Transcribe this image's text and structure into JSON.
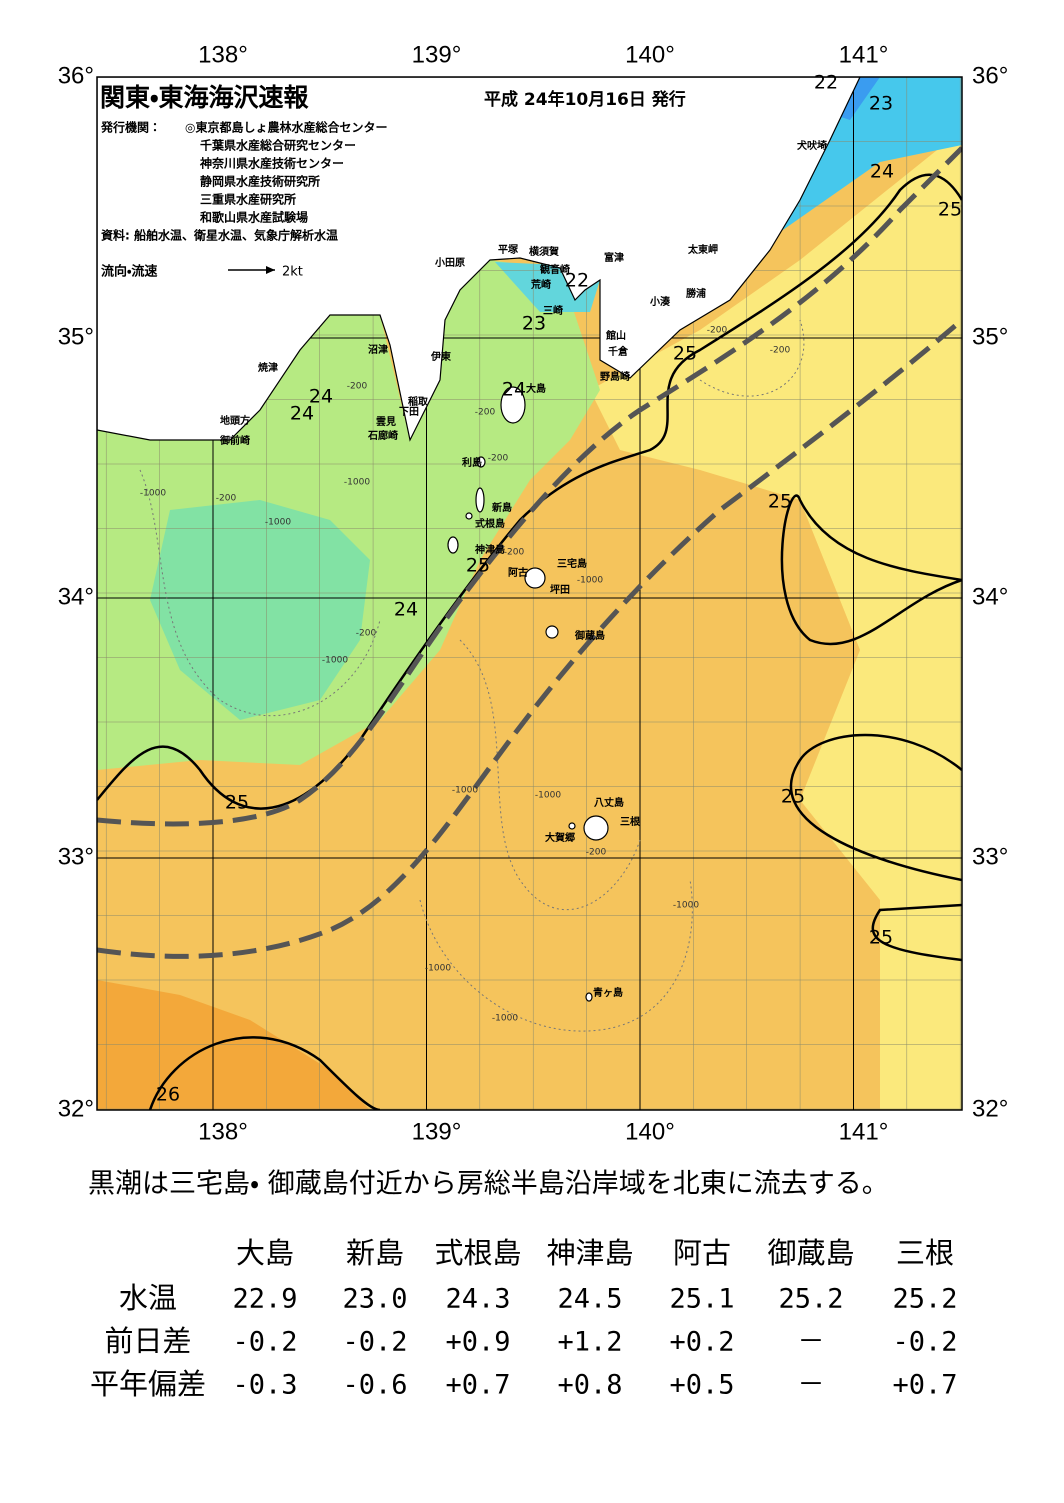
{
  "map": {
    "title": "関東・東海海沢速報",
    "date": "平成 24年10月16日 発行",
    "publisher_label": "発行機関：",
    "publishers": [
      "◎東京都島しょ農林水産総合センター",
      "千葉県水産総合研究センター",
      "神奈川県水産技術センター",
      "静岡県水産技術研究所",
      "三重県水産研究所",
      "和歌山県水産試験場"
    ],
    "source": "資料: 船舶水温、衛星水温、気象庁解析水温",
    "legend": {
      "label": "流向・流速",
      "scale": "2kt"
    },
    "lon_labels": [
      "138°",
      "139°",
      "140°",
      "141°"
    ],
    "lat_labels": [
      "36°",
      "35°",
      "34°",
      "33°",
      "32°"
    ],
    "places": [
      "犬吠埼",
      "太東岬",
      "勝浦",
      "小湊",
      "富津",
      "館山",
      "千倉",
      "野島崎",
      "横須賀",
      "平塚",
      "小田原",
      "観音崎",
      "荒崎",
      "三崎",
      "沼津",
      "伊東",
      "稲取",
      "下田",
      "雲見",
      "石廊崎",
      "焼津",
      "地頭方",
      "御前崎",
      "大島",
      "利島",
      "新島",
      "式根島",
      "神津島",
      "三宅島",
      "阿古",
      "坪田",
      "御蔵島",
      "八丈島",
      "三根",
      "大賀郷",
      "青ヶ島"
    ],
    "temperature_labels": [
      "22",
      "22",
      "23",
      "23",
      "24",
      "24",
      "24",
      "24",
      "24",
      "25",
      "25",
      "25",
      "25",
      "25",
      "25",
      "25",
      "26"
    ],
    "depth_labels": [
      "-1000",
      "-200",
      "-200",
      "-1000",
      "-200",
      "-200",
      "-1000",
      "-200",
      "-1000",
      "-1000",
      "-1000",
      "-200",
      "-1000",
      "-1000",
      "-1000",
      "-200",
      "-1000",
      "-200",
      "-200"
    ]
  },
  "summary": "黒潮は三宅島・ 御蔵島付近から房総半島沿岸域を北東に流去する。",
  "table": {
    "header": [
      "大島",
      "新島",
      "式根島",
      "神津島",
      "阿古",
      "御蔵島",
      "三根"
    ],
    "rows": [
      [
        "水温",
        "22.9",
        "23.0",
        "24.3",
        "24.5",
        "25.1",
        "25.2",
        "25.2"
      ],
      [
        "前日差",
        "-0.2",
        "-0.2",
        "+0.9",
        "+1.2",
        "+0.2",
        "－",
        "-0.2"
      ],
      [
        "平年偏差",
        "-0.3",
        "-0.6",
        "+0.7",
        "+0.8",
        "+0.5",
        "－",
        "+0.7"
      ]
    ]
  }
}
